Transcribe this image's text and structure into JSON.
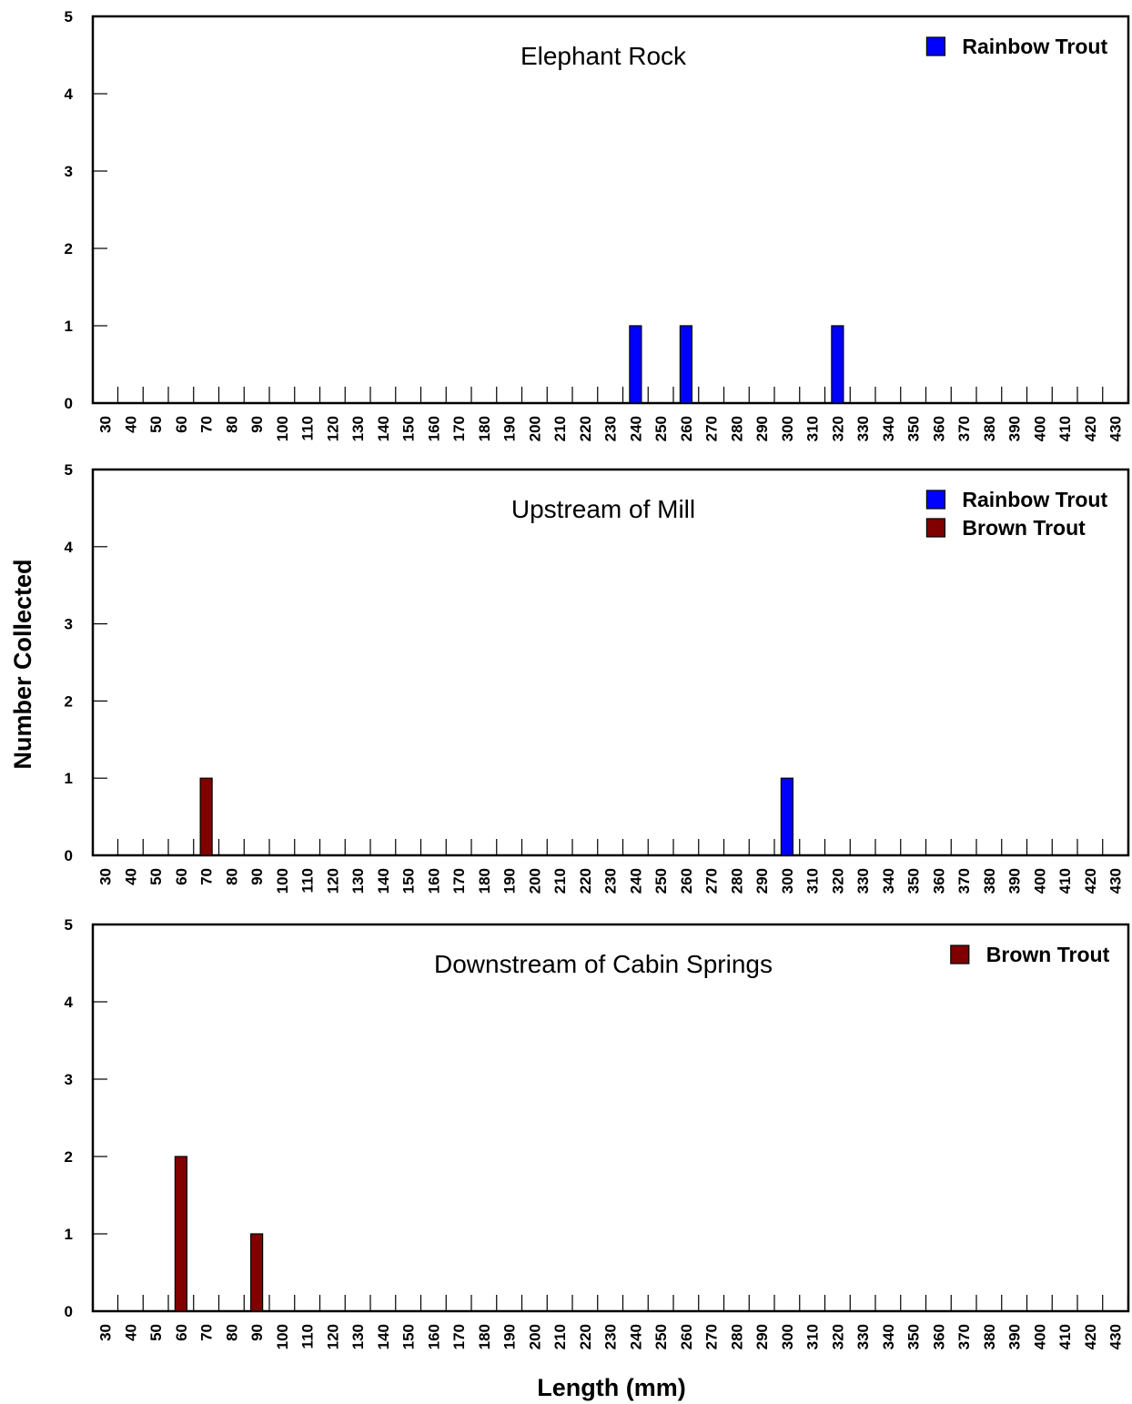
{
  "figure": {
    "ylabel": "Number Collected",
    "xlabel": "Length (mm)"
  },
  "colors": {
    "Rainbow Trout": "#0000ff",
    "Brown Trout": "#800000",
    "axis": "#000000"
  },
  "chart_data": [
    {
      "type": "bar",
      "title": "Elephant Rock",
      "categories": [
        "30",
        "40",
        "50",
        "60",
        "70",
        "80",
        "90",
        "100",
        "110",
        "120",
        "130",
        "140",
        "150",
        "160",
        "170",
        "180",
        "190",
        "200",
        "210",
        "220",
        "230",
        "240",
        "250",
        "260",
        "270",
        "280",
        "290",
        "300",
        "310",
        "320",
        "330",
        "340",
        "350",
        "360",
        "370",
        "380",
        "390",
        "400",
        "410",
        "420",
        "430"
      ],
      "ylim": [
        0,
        5
      ],
      "yticks": [
        0,
        1,
        2,
        3,
        4,
        5
      ],
      "legend": [
        "Rainbow Trout"
      ],
      "legend_position": "top-right",
      "series": [
        {
          "name": "Rainbow Trout",
          "values": [
            0,
            0,
            0,
            0,
            0,
            0,
            0,
            0,
            0,
            0,
            0,
            0,
            0,
            0,
            0,
            0,
            0,
            0,
            0,
            0,
            0,
            1,
            0,
            1,
            0,
            0,
            0,
            0,
            0,
            1,
            0,
            0,
            0,
            0,
            0,
            0,
            0,
            0,
            0,
            0,
            0
          ]
        }
      ]
    },
    {
      "type": "bar",
      "title": "Upstream of Mill",
      "categories": [
        "30",
        "40",
        "50",
        "60",
        "70",
        "80",
        "90",
        "100",
        "110",
        "120",
        "130",
        "140",
        "150",
        "160",
        "170",
        "180",
        "190",
        "200",
        "210",
        "220",
        "230",
        "240",
        "250",
        "260",
        "270",
        "280",
        "290",
        "300",
        "310",
        "320",
        "330",
        "340",
        "350",
        "360",
        "370",
        "380",
        "390",
        "400",
        "410",
        "420",
        "430"
      ],
      "ylim": [
        0,
        5
      ],
      "yticks": [
        0,
        1,
        2,
        3,
        4,
        5
      ],
      "legend": [
        "Rainbow Trout",
        "Brown Trout"
      ],
      "legend_position": "top-right",
      "series": [
        {
          "name": "Rainbow Trout",
          "values": [
            0,
            0,
            0,
            0,
            0,
            0,
            0,
            0,
            0,
            0,
            0,
            0,
            0,
            0,
            0,
            0,
            0,
            0,
            0,
            0,
            0,
            0,
            0,
            0,
            0,
            0,
            0,
            1,
            0,
            0,
            0,
            0,
            0,
            0,
            0,
            0,
            0,
            0,
            0,
            0,
            0
          ]
        },
        {
          "name": "Brown Trout",
          "values": [
            0,
            0,
            0,
            0,
            1,
            0,
            0,
            0,
            0,
            0,
            0,
            0,
            0,
            0,
            0,
            0,
            0,
            0,
            0,
            0,
            0,
            0,
            0,
            0,
            0,
            0,
            0,
            0,
            0,
            0,
            0,
            0,
            0,
            0,
            0,
            0,
            0,
            0,
            0,
            0,
            0
          ]
        }
      ]
    },
    {
      "type": "bar",
      "title": "Downstream of Cabin Springs",
      "categories": [
        "30",
        "40",
        "50",
        "60",
        "70",
        "80",
        "90",
        "100",
        "110",
        "120",
        "130",
        "140",
        "150",
        "160",
        "170",
        "180",
        "190",
        "200",
        "210",
        "220",
        "230",
        "240",
        "250",
        "260",
        "270",
        "280",
        "290",
        "300",
        "310",
        "320",
        "330",
        "340",
        "350",
        "360",
        "370",
        "380",
        "390",
        "400",
        "410",
        "420",
        "430"
      ],
      "ylim": [
        0,
        5
      ],
      "yticks": [
        0,
        1,
        2,
        3,
        4,
        5
      ],
      "legend": [
        "Brown Trout"
      ],
      "legend_position": "top-right",
      "series": [
        {
          "name": "Brown Trout",
          "values": [
            0,
            0,
            0,
            2,
            0,
            0,
            1,
            0,
            0,
            0,
            0,
            0,
            0,
            0,
            0,
            0,
            0,
            0,
            0,
            0,
            0,
            0,
            0,
            0,
            0,
            0,
            0,
            0,
            0,
            0,
            0,
            0,
            0,
            0,
            0,
            0,
            0,
            0,
            0,
            0,
            0
          ]
        }
      ]
    }
  ]
}
